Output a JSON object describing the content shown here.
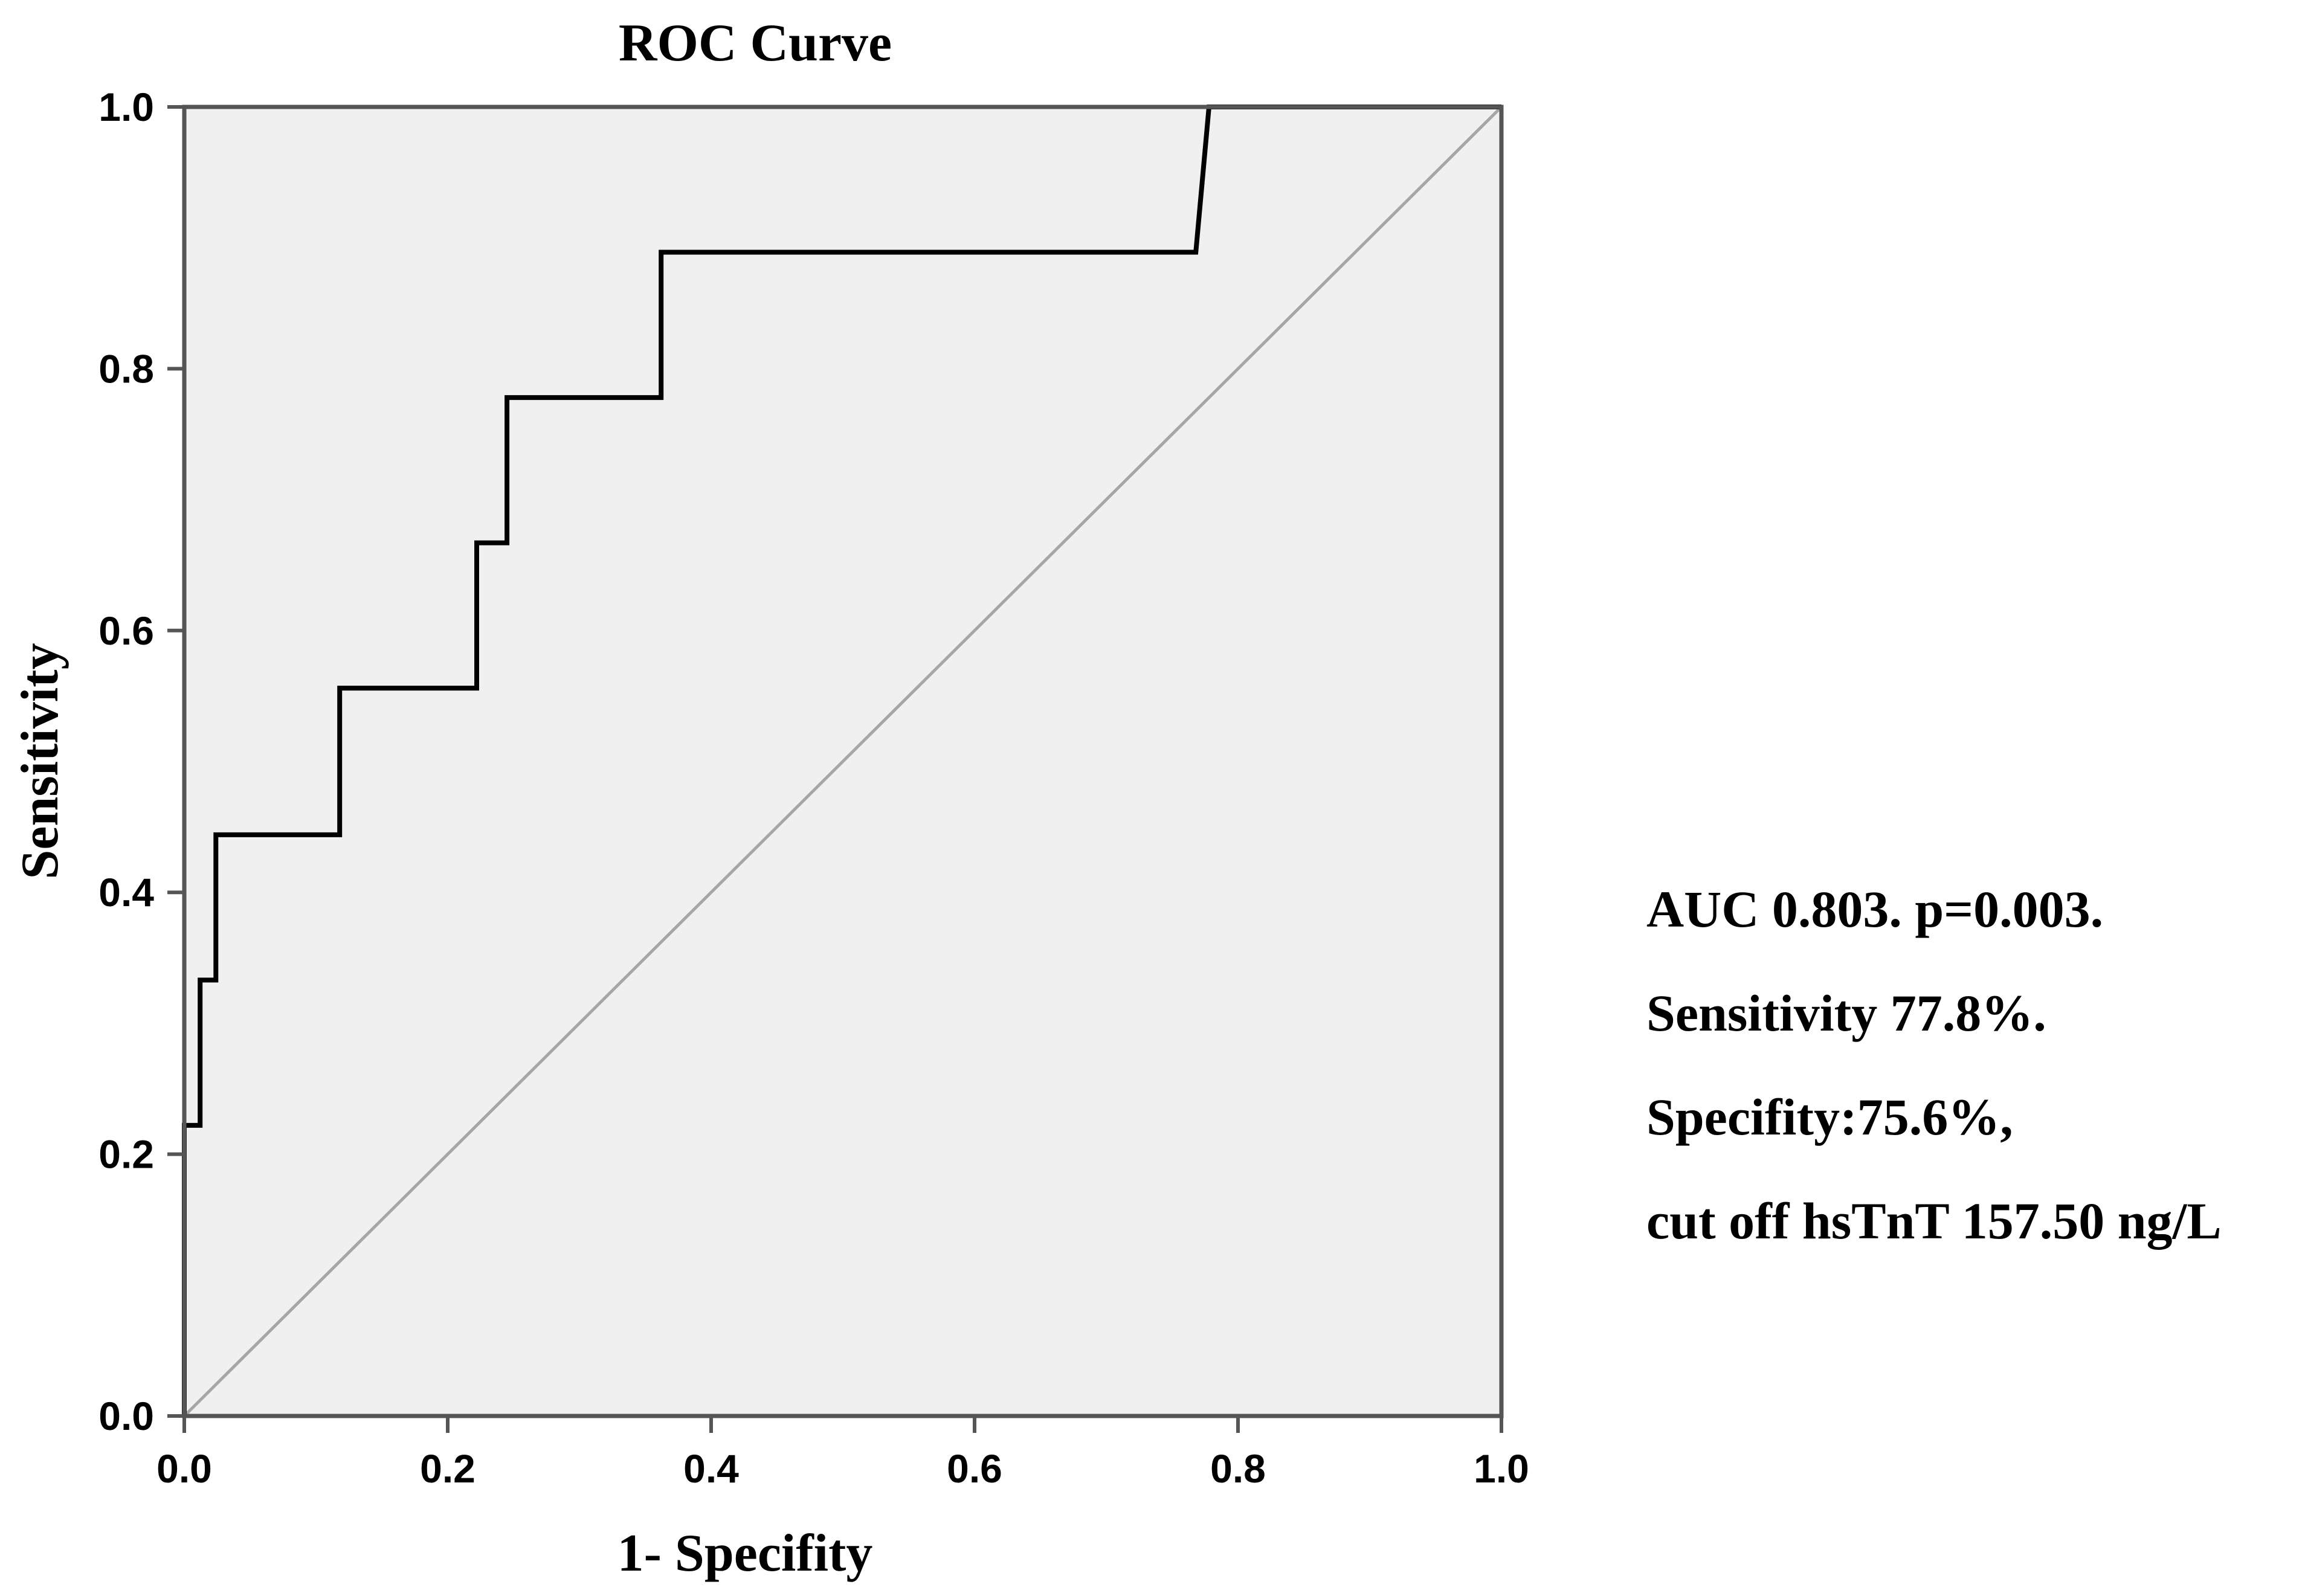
{
  "chart_data": {
    "type": "line",
    "title": "ROC Curve",
    "xlabel": "1- Specifity",
    "ylabel": "Sensitivity",
    "xlim": [
      0,
      1
    ],
    "ylim": [
      0,
      1
    ],
    "x_ticks": [
      "0.0",
      "0.2",
      "0.4",
      "0.6",
      "0.8",
      "1.0"
    ],
    "y_ticks": [
      "0.0",
      "0.2",
      "0.4",
      "0.6",
      "0.8",
      "1.0"
    ],
    "grid": false,
    "legend": "none",
    "plot_background": "#f0f0f0",
    "series": [
      {
        "x": [
          0.0,
          0.0,
          0.012,
          0.012,
          0.024,
          0.024,
          0.118,
          0.118,
          0.222,
          0.222,
          0.245,
          0.245,
          0.362,
          0.362,
          0.768,
          0.778,
          1.0
        ],
        "y": [
          0.0,
          0.222,
          0.222,
          0.333,
          0.333,
          0.444,
          0.444,
          0.556,
          0.556,
          0.667,
          0.667,
          0.778,
          0.778,
          0.889,
          0.889,
          1.0,
          1.0
        ],
        "color": "#000000"
      },
      {
        "x": [
          0,
          1
        ],
        "y": [
          0,
          1
        ],
        "color": "#a6a6a6"
      }
    ]
  },
  "annotations": [
    "AUC 0.803. p=0.003.",
    "Sensitivity 77.8%.",
    "Specifity:75.6%,",
    "cut off hsTnT 157.50 ng/L"
  ]
}
